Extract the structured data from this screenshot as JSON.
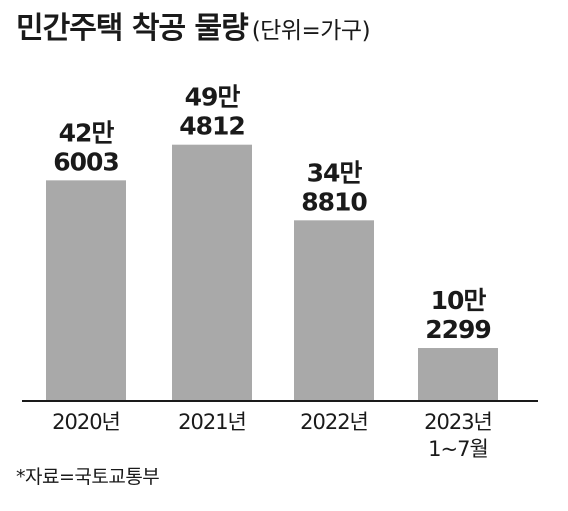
{
  "chart_data": {
    "type": "bar",
    "title": "민간주택 착공 물량",
    "unit": "(단위=가구)",
    "categories": [
      [
        "2020년"
      ],
      [
        "2021년"
      ],
      [
        "2022년"
      ],
      [
        "2023년",
        "1~7월"
      ]
    ],
    "values": [
      426003,
      494812,
      348810,
      102299
    ],
    "value_labels": [
      [
        "42만",
        "6003"
      ],
      [
        "49만",
        "4812"
      ],
      [
        "34만",
        "8810"
      ],
      [
        "10만",
        "2299"
      ]
    ],
    "ylim": [
      0,
      500000
    ],
    "grid": false,
    "bar_color": "#a9a9a9",
    "source": "*자료=국토교통부"
  }
}
